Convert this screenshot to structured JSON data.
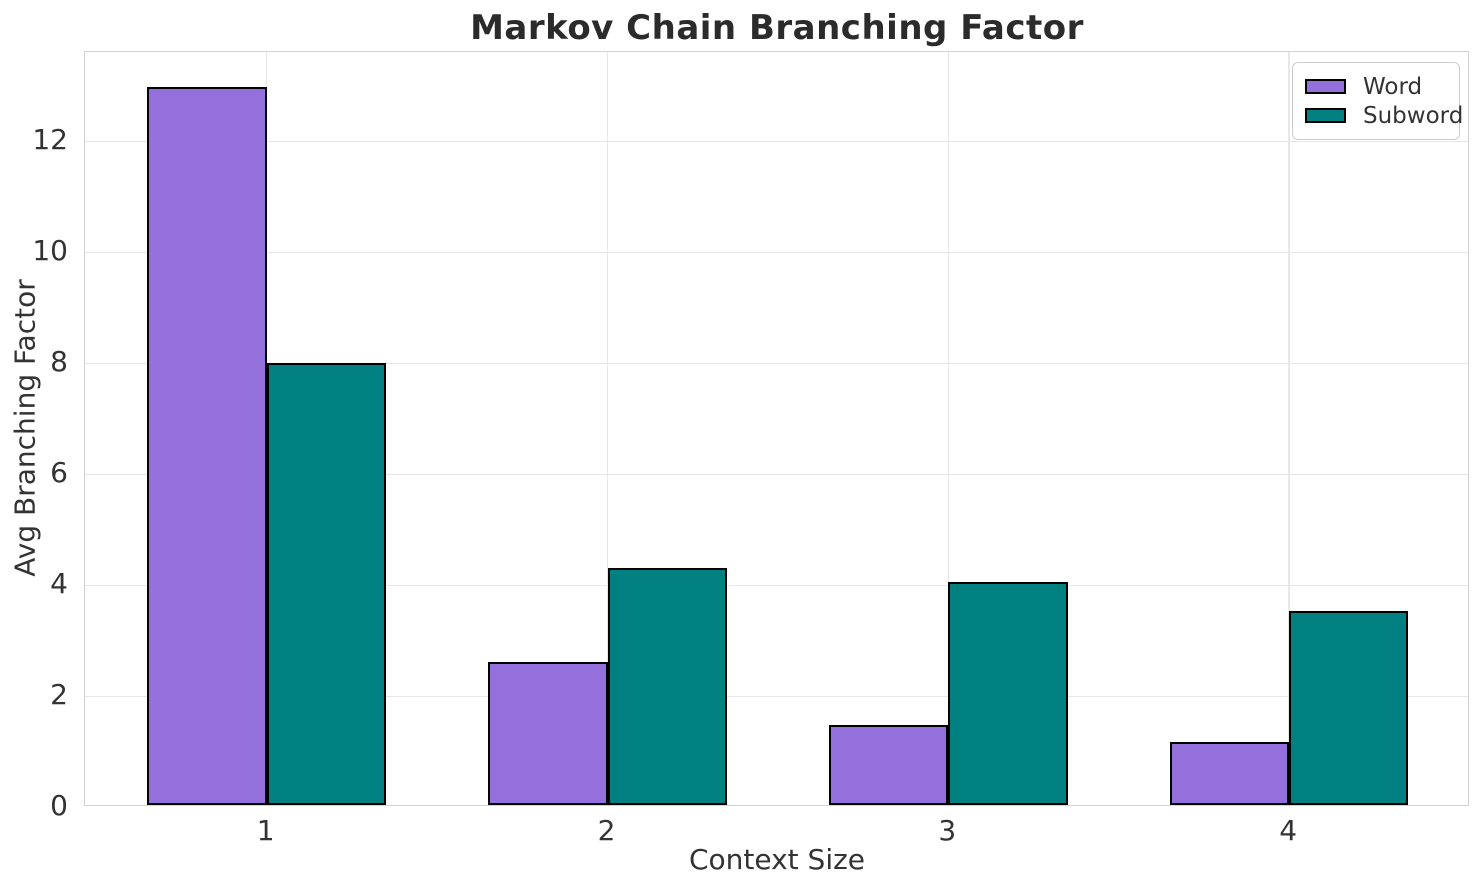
{
  "chart_data": {
    "type": "bar",
    "title": "Markov Chain Branching Factor",
    "xlabel": "Context Size",
    "ylabel": "Avg Branching Factor",
    "categories": [
      "1",
      "2",
      "3",
      "4"
    ],
    "series": [
      {
        "name": "Word",
        "color": "#9370DB",
        "values": [
          12.94,
          2.58,
          1.45,
          1.14
        ]
      },
      {
        "name": "Subword",
        "color": "#008080",
        "values": [
          7.97,
          4.27,
          4.02,
          3.5
        ]
      }
    ],
    "yticks": [
      0,
      2,
      4,
      6,
      8,
      10,
      12
    ],
    "ylim": [
      0,
      13.6
    ],
    "grid": true,
    "legend_position": "upper right",
    "bar_edge_color": "#000000",
    "legend": {
      "entries": [
        "Word",
        "Subword"
      ]
    }
  }
}
